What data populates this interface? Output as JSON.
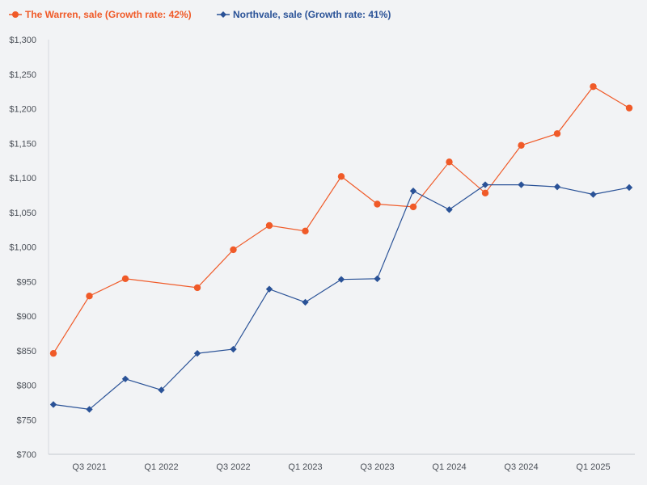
{
  "chart_data": {
    "type": "line",
    "title": "",
    "xlabel": "",
    "ylabel": "",
    "ylim": [
      700,
      1300
    ],
    "y_ticks": [
      "$700",
      "$750",
      "$800",
      "$850",
      "$900",
      "$950",
      "$1,000",
      "$1,050",
      "$1,100",
      "$1,150",
      "$1,200",
      "$1,250",
      "$1,300"
    ],
    "y_tick_values": [
      700,
      750,
      800,
      850,
      900,
      950,
      1000,
      1050,
      1100,
      1150,
      1200,
      1250,
      1300
    ],
    "x_tick_labels": [
      "Q3 2021",
      "Q1 2022",
      "Q3 2022",
      "Q1 2023",
      "Q3 2023",
      "Q1 2024",
      "Q3 2024",
      "Q1 2025"
    ],
    "x_tick_positions": [
      1,
      3,
      5,
      7,
      9,
      11,
      13,
      15
    ],
    "xlim": [
      0,
      16
    ],
    "grid": false,
    "legend_position": "top-left",
    "series": [
      {
        "name": "The Warren, sale (Growth rate: 42%)",
        "color": "#f05a28",
        "marker": "circle",
        "points": [
          [
            0,
            846
          ],
          [
            1,
            929
          ],
          [
            2,
            954
          ],
          [
            4,
            941
          ],
          [
            5,
            996
          ],
          [
            6,
            1031
          ],
          [
            7,
            1023
          ],
          [
            8,
            1102
          ],
          [
            9,
            1062
          ],
          [
            10,
            1058
          ],
          [
            11,
            1123
          ],
          [
            12,
            1078
          ],
          [
            13,
            1147
          ],
          [
            14,
            1164
          ],
          [
            15,
            1232
          ],
          [
            16,
            1201
          ]
        ]
      },
      {
        "name": "Northvale, sale (Growth rate: 41%)",
        "color": "#2a5297",
        "marker": "diamond",
        "points": [
          [
            0,
            772
          ],
          [
            1,
            765
          ],
          [
            2,
            809
          ],
          [
            3,
            793
          ],
          [
            4,
            846
          ],
          [
            5,
            852
          ],
          [
            6,
            939
          ],
          [
            7,
            920
          ],
          [
            8,
            953
          ],
          [
            9,
            954
          ],
          [
            10,
            1081
          ],
          [
            11,
            1054
          ],
          [
            12,
            1090
          ],
          [
            13,
            1090
          ],
          [
            14,
            1087
          ],
          [
            15,
            1076
          ],
          [
            16,
            1086
          ]
        ]
      }
    ]
  }
}
